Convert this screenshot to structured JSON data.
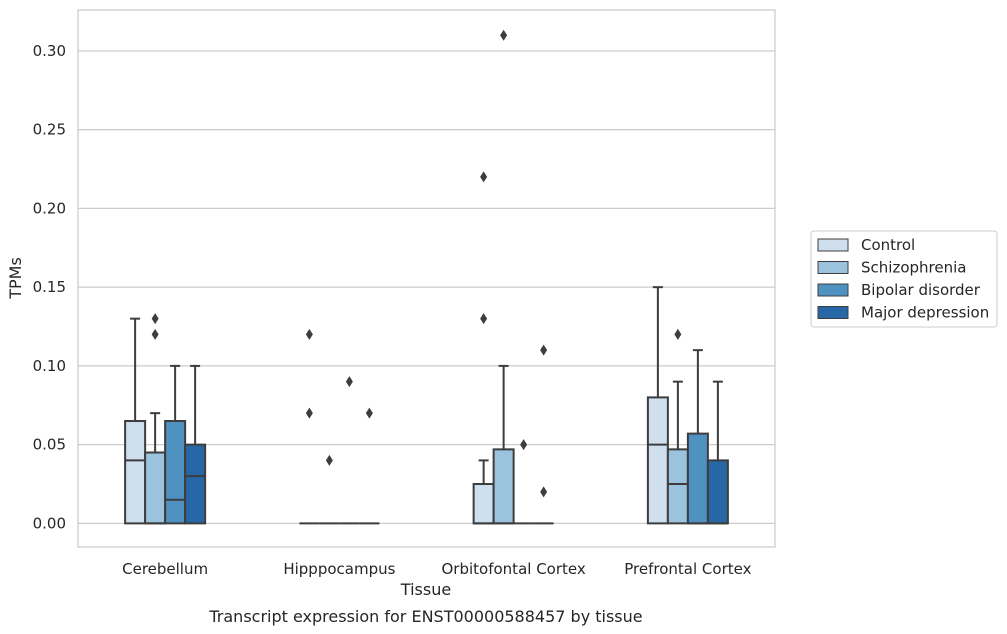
{
  "chart_data": {
    "type": "box",
    "xlabel": "Tissue",
    "ylabel": "TPMs",
    "caption": "Transcript expression for ENST00000588457 by tissue",
    "ylim": [
      -0.015,
      0.326
    ],
    "yticks": [
      "0.00",
      "0.05",
      "0.10",
      "0.15",
      "0.20",
      "0.25",
      "0.30"
    ],
    "grid": "horizontal",
    "legend_position": "right",
    "categories": [
      "Cerebellum",
      "Hipppocampus",
      "Orbitofontal Cortex",
      "Prefrontal Cortex"
    ],
    "series": [
      {
        "name": "Control",
        "color": "#cfdfee",
        "boxes": [
          {
            "q1": 0.0,
            "median": 0.04,
            "q3": 0.065,
            "whisker_low": 0.0,
            "whisker_high": 0.13,
            "outliers": []
          },
          {
            "q1": 0.0,
            "median": 0.0,
            "q3": 0.0,
            "whisker_low": 0.0,
            "whisker_high": 0.0,
            "outliers": [
              0.12,
              0.07
            ]
          },
          {
            "q1": 0.0,
            "median": 0.0,
            "q3": 0.025,
            "whisker_low": 0.0,
            "whisker_high": 0.04,
            "outliers": [
              0.22,
              0.13
            ]
          },
          {
            "q1": 0.0,
            "median": 0.05,
            "q3": 0.08,
            "whisker_low": 0.0,
            "whisker_high": 0.15,
            "outliers": []
          }
        ]
      },
      {
        "name": "Schizophrenia",
        "color": "#9bc3dd",
        "boxes": [
          {
            "q1": 0.0,
            "median": 0.0,
            "q3": 0.045,
            "whisker_low": 0.0,
            "whisker_high": 0.07,
            "outliers": [
              0.13,
              0.12
            ]
          },
          {
            "q1": 0.0,
            "median": 0.0,
            "q3": 0.0,
            "whisker_low": 0.0,
            "whisker_high": 0.0,
            "outliers": [
              0.04
            ]
          },
          {
            "q1": 0.0,
            "median": 0.0,
            "q3": 0.047,
            "whisker_low": 0.0,
            "whisker_high": 0.1,
            "outliers": [
              0.31
            ]
          },
          {
            "q1": 0.0,
            "median": 0.025,
            "q3": 0.047,
            "whisker_low": 0.0,
            "whisker_high": 0.09,
            "outliers": [
              0.12
            ]
          }
        ]
      },
      {
        "name": "Bipolar disorder",
        "color": "#4f92c2",
        "boxes": [
          {
            "q1": 0.0,
            "median": 0.015,
            "q3": 0.065,
            "whisker_low": 0.0,
            "whisker_high": 0.1,
            "outliers": []
          },
          {
            "q1": 0.0,
            "median": 0.0,
            "q3": 0.0,
            "whisker_low": 0.0,
            "whisker_high": 0.0,
            "outliers": [
              0.09
            ]
          },
          {
            "q1": 0.0,
            "median": 0.0,
            "q3": 0.0,
            "whisker_low": 0.0,
            "whisker_high": 0.0,
            "outliers": [
              0.05
            ]
          },
          {
            "q1": 0.0,
            "median": 0.0,
            "q3": 0.057,
            "whisker_low": 0.0,
            "whisker_high": 0.11,
            "outliers": []
          }
        ]
      },
      {
        "name": "Major depression",
        "color": "#2767a6",
        "boxes": [
          {
            "q1": 0.0,
            "median": 0.03,
            "q3": 0.05,
            "whisker_low": 0.0,
            "whisker_high": 0.1,
            "outliers": []
          },
          {
            "q1": 0.0,
            "median": 0.0,
            "q3": 0.0,
            "whisker_low": 0.0,
            "whisker_high": 0.0,
            "outliers": [
              0.07
            ]
          },
          {
            "q1": 0.0,
            "median": 0.0,
            "q3": 0.0,
            "whisker_low": 0.0,
            "whisker_high": 0.0,
            "outliers": [
              0.11,
              0.02
            ]
          },
          {
            "q1": 0.0,
            "median": 0.0,
            "q3": 0.04,
            "whisker_low": 0.0,
            "whisker_high": 0.09,
            "outliers": []
          }
        ]
      }
    ]
  }
}
